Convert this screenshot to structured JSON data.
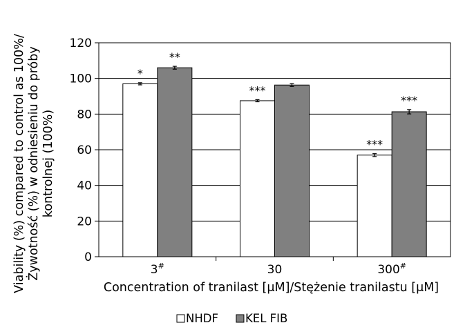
{
  "chart_data": {
    "type": "bar",
    "categories": [
      "3#",
      "30",
      "300#"
    ],
    "category_display": [
      {
        "main": "3",
        "sup": "#"
      },
      {
        "main": "30",
        "sup": ""
      },
      {
        "main": "300",
        "sup": "#"
      }
    ],
    "series": [
      {
        "name": "NHDF",
        "values": [
          97,
          87.5,
          57
        ],
        "errors": [
          0.6,
          0.6,
          0.8
        ],
        "significance": [
          "*",
          "***",
          "***"
        ],
        "color": "#ffffff"
      },
      {
        "name": "KEL FIB",
        "values": [
          106,
          96.3,
          81.3
        ],
        "errors": [
          0.8,
          0.8,
          1.2
        ],
        "significance": [
          "**",
          "",
          "***"
        ],
        "color": "#808080"
      }
    ],
    "yticks": [
      0,
      20,
      40,
      60,
      80,
      100,
      120
    ],
    "ylim": [
      0,
      120
    ],
    "grid": true,
    "legend_position": "bottom",
    "ylabel_lines": [
      "Viability (%) compared to control as 100%/",
      "Żywotność (%) w odniesieniu do próby",
      "kontrolnej (100%)"
    ],
    "xlabel": "Concentration of tranilast [μM]/Stężenie tranilastu [μM]",
    "title": ""
  }
}
